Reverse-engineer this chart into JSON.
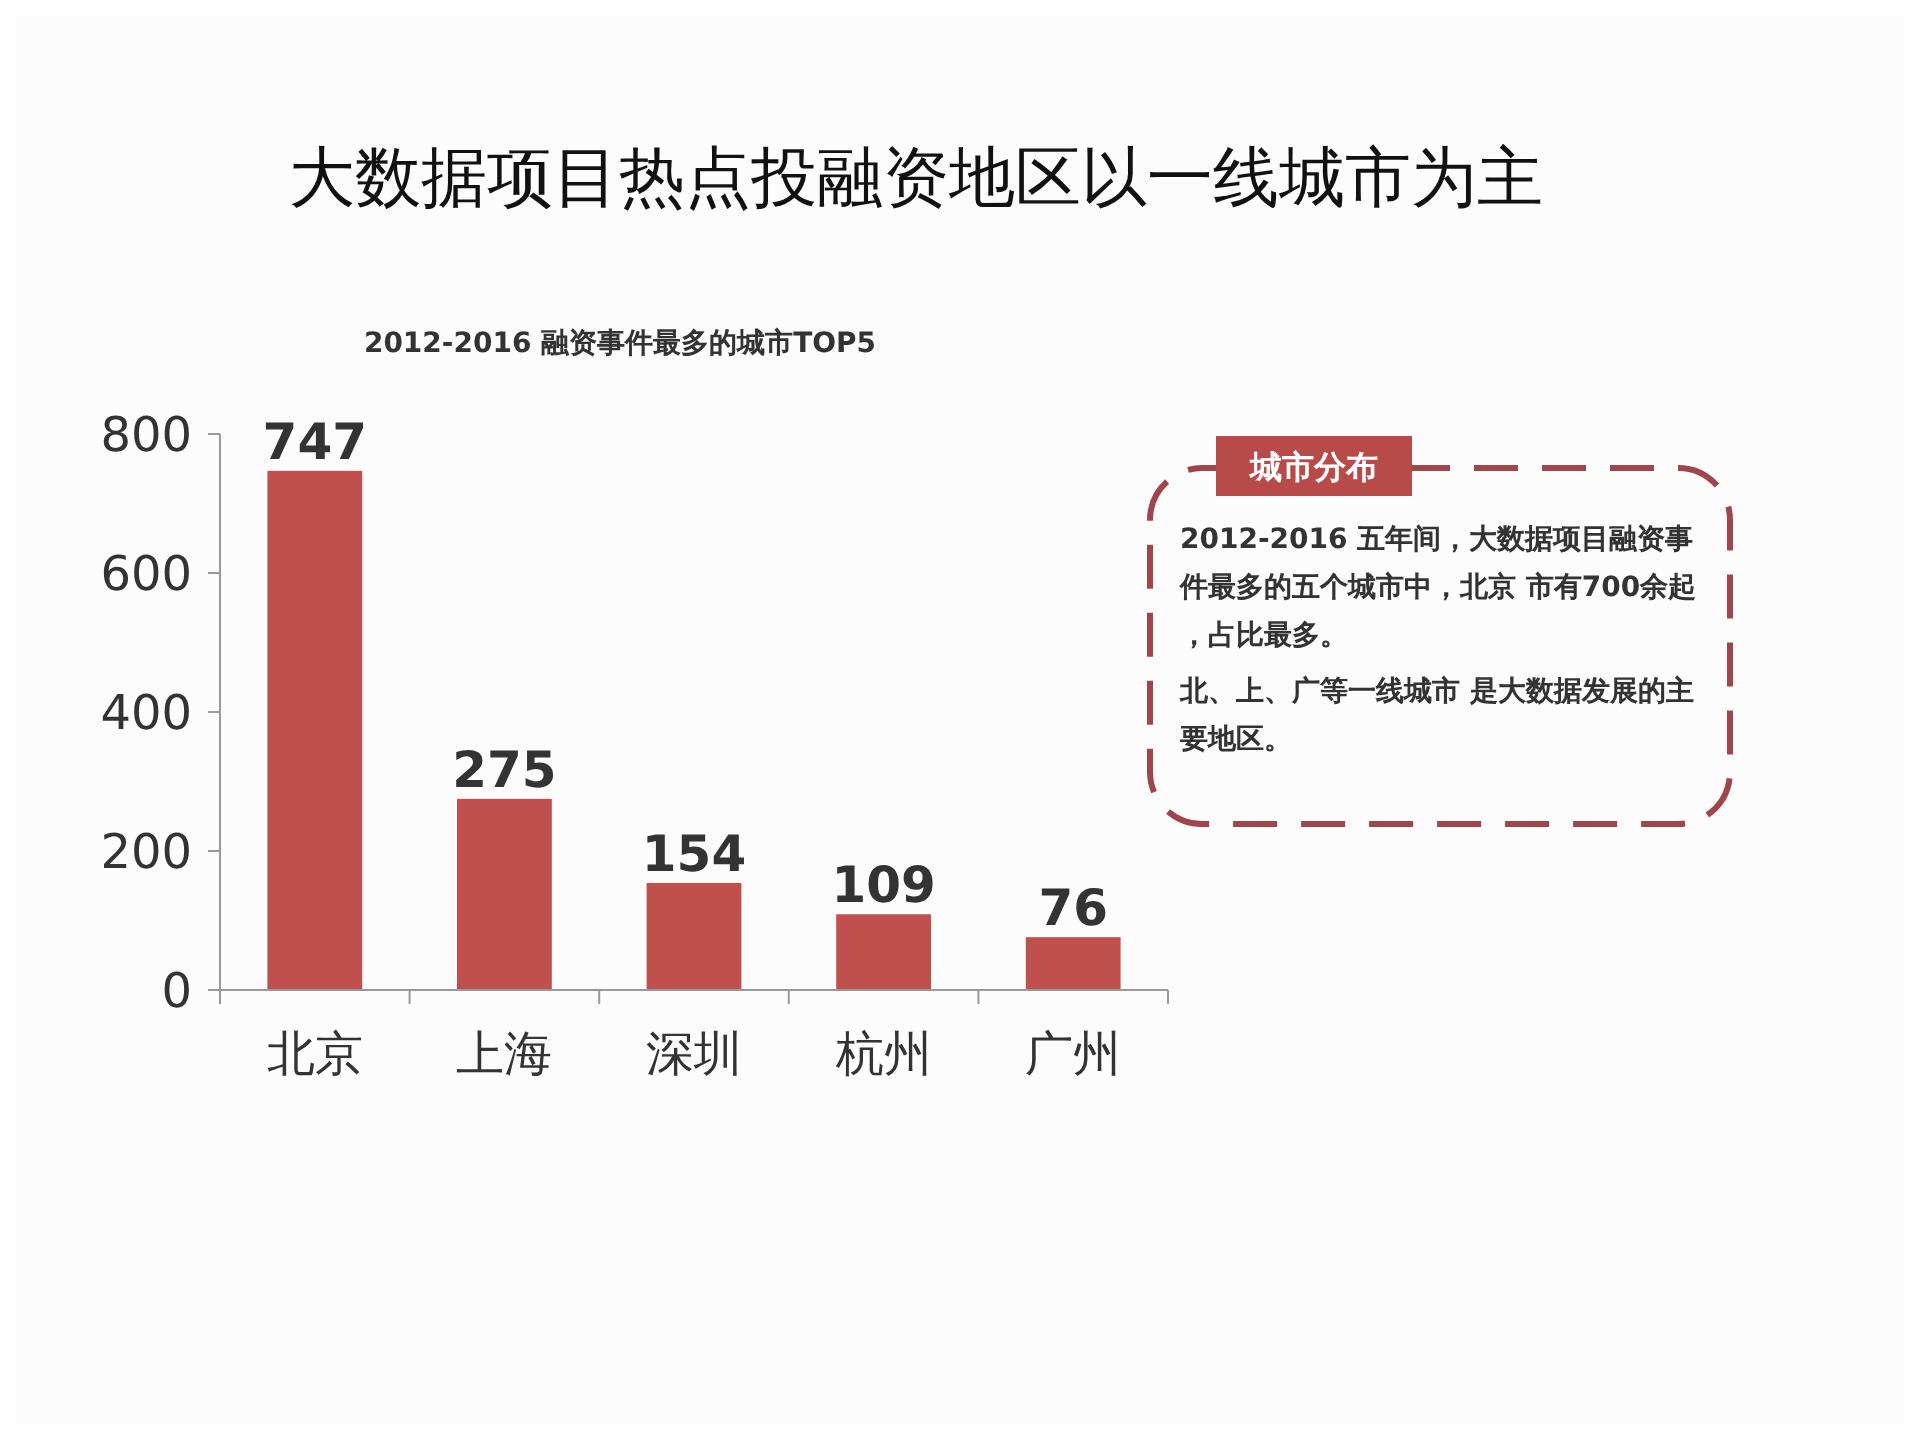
{
  "chart_data": {
    "type": "bar",
    "title": "大数据项目热点投融资地区以一线城市为主",
    "subtitle": "2012-2016 融资事件最多的城市TOP5",
    "categories": [
      "北京",
      "上海",
      "深圳",
      "杭州",
      "广州"
    ],
    "values": [
      747,
      275,
      154,
      109,
      76
    ],
    "color": "#c0504d",
    "ylim": [
      0,
      800
    ],
    "yticks": [
      0,
      200,
      400,
      600,
      800
    ],
    "grid": false,
    "data_labels": true,
    "annotations": [
      "城市分布",
      "2012-2016 五年间，大数据项目融资事件最多的五个城市中，北京 市有700余起，占比最多。",
      "北、上、广等一线城市 是大数据发展的主要地区。"
    ]
  }
}
